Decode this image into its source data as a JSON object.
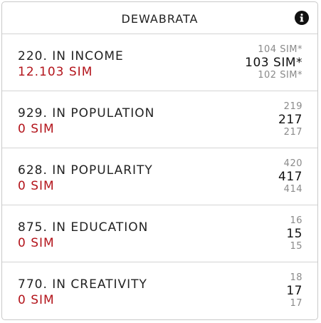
{
  "header": {
    "title": "DEWABRATA",
    "info_icon": "info-circle-icon"
  },
  "rows": [
    {
      "label": "220. IN INCOME",
      "value": "12.103 SIM",
      "rank_prev": "104 SIM*",
      "rank_current": "103 SIM*",
      "rank_next": "102 SIM*"
    },
    {
      "label": "929. IN POPULATION",
      "value": "0 SIM",
      "rank_prev": "219",
      "rank_current": "217",
      "rank_next": "217"
    },
    {
      "label": "628. IN POPULARITY",
      "value": "0 SIM",
      "rank_prev": "420",
      "rank_current": "417",
      "rank_next": "414"
    },
    {
      "label": "875. IN EDUCATION",
      "value": "0 SIM",
      "rank_prev": "16",
      "rank_current": "15",
      "rank_next": "15"
    },
    {
      "label": "770. IN CREATIVITY",
      "value": "0 SIM",
      "rank_prev": "18",
      "rank_current": "17",
      "rank_next": "17"
    }
  ],
  "colors": {
    "value_red": "#b3141b",
    "muted_gray": "#8a8a8a",
    "border": "#d4d4d4"
  }
}
